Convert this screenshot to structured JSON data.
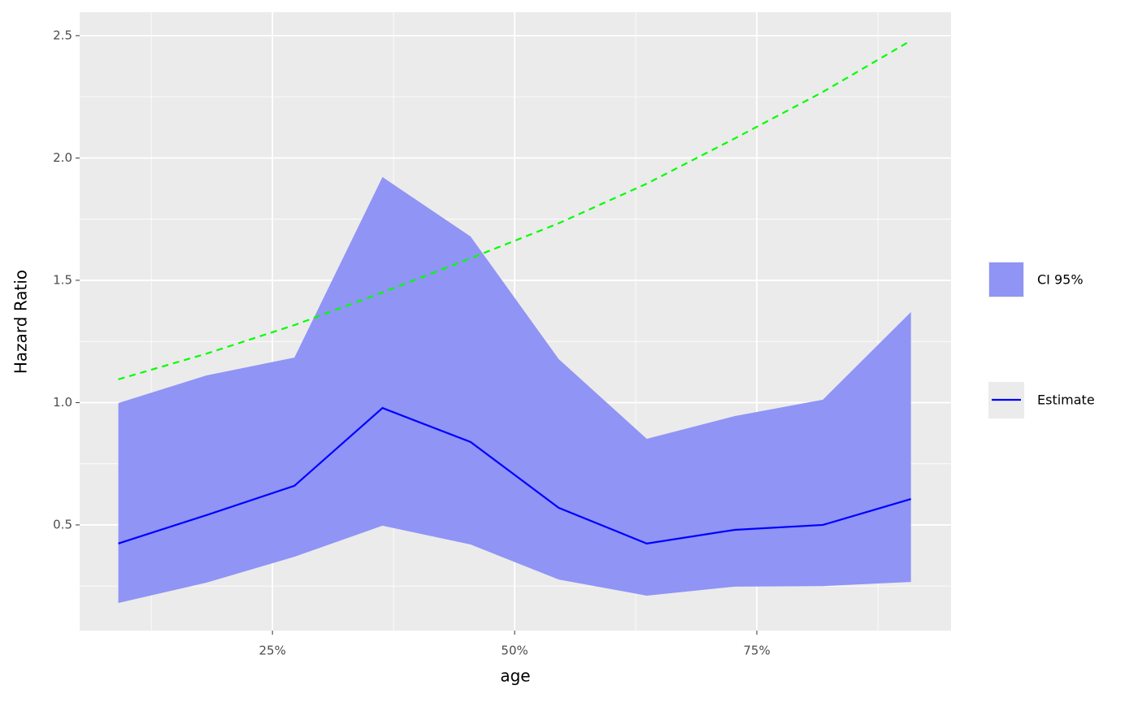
{
  "chart_data": {
    "type": "line",
    "x_label": "age",
    "y_label": "Hazard Ratio",
    "x": [
      9.09,
      18.18,
      27.27,
      36.36,
      45.45,
      54.55,
      63.64,
      72.73,
      81.82,
      90.91
    ],
    "band": {
      "name": "CI 95%",
      "color": "#8f94f5",
      "upper": [
        0.998,
        1.111,
        1.184,
        1.922,
        1.679,
        1.178,
        0.852,
        0.945,
        1.012,
        1.37
      ],
      "lower": [
        0.181,
        0.264,
        0.37,
        0.497,
        0.42,
        0.277,
        0.211,
        0.248,
        0.25,
        0.267
      ]
    },
    "series": [
      {
        "name": "Estimate",
        "color": "#0000ff",
        "values": [
          0.424,
          0.54,
          0.66,
          0.978,
          0.839,
          0.57,
          0.424,
          0.48,
          0.5,
          0.606
        ]
      },
      {
        "color": "#00ff00",
        "dashed": true,
        "values": [
          1.095,
          1.2,
          1.317,
          1.45,
          1.59,
          1.733,
          1.895,
          2.08,
          2.27,
          2.48
        ]
      }
    ],
    "xlim": [
      5.1,
      95.05
    ],
    "ylim": [
      0.068,
      2.596
    ],
    "xticks": [
      {
        "value": 25,
        "label": "25%"
      },
      {
        "value": 50,
        "label": "50%"
      },
      {
        "value": 75,
        "label": "75%"
      }
    ],
    "yticks": [
      0.5,
      {
        "value": 1,
        "label": "1.0"
      },
      1.5,
      {
        "value": 2,
        "label": "2.0"
      },
      2.5
    ],
    "xminor": [
      12.5,
      37.5,
      62.5,
      87.5
    ],
    "yminor": [
      0.25,
      0.75,
      1.25,
      1.75,
      2.25
    ],
    "grid": true
  }
}
